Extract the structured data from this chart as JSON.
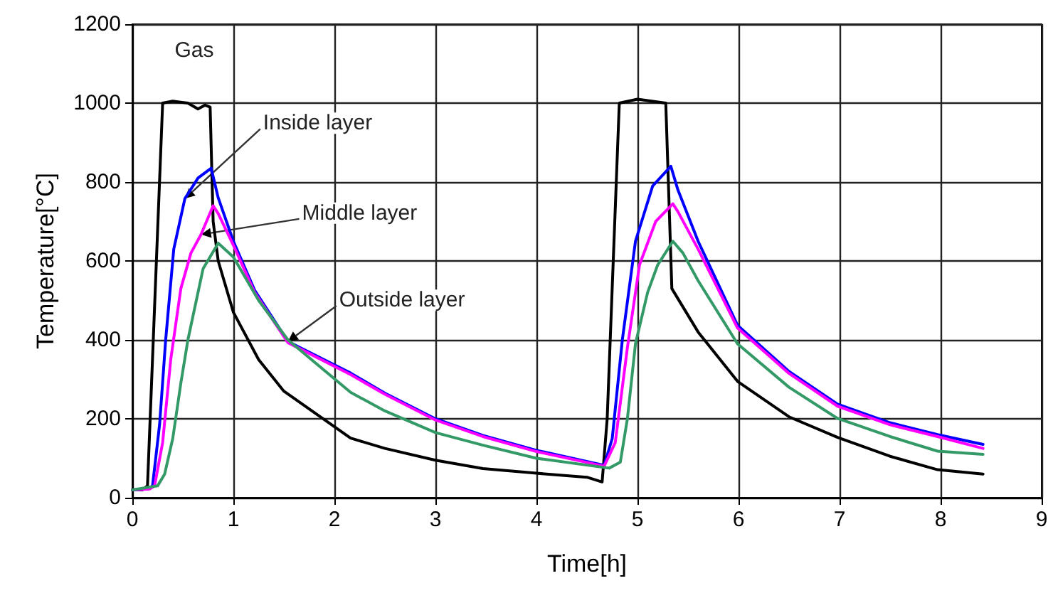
{
  "chart_data": {
    "type": "line",
    "xlabel": "Time[h]",
    "ylabel": "Temperature[°C]",
    "xlim": [
      0,
      9
    ],
    "xticks": [
      0,
      1,
      2,
      3,
      4,
      5,
      6,
      7,
      8,
      9
    ],
    "ylim": [
      0,
      1200
    ],
    "yticks": [
      0,
      200,
      400,
      600,
      800,
      1000,
      1200
    ],
    "grid": true,
    "marker": "none",
    "line_style": "solid",
    "series": [
      {
        "color": "#000000",
        "x": [
          0,
          0.1,
          0.15,
          0.3,
          0.4,
          0.55,
          0.65,
          0.72,
          0.77,
          0.8,
          0.85,
          1,
          1.25,
          1.5,
          2.16,
          2.5,
          3,
          3.47,
          4,
          4.5,
          4.65,
          4.7,
          4.82,
          5.0,
          5.28,
          5.34,
          5.6,
          5.99,
          6.5,
          6.98,
          7.5,
          7.97,
          8.42
        ],
        "values": [
          20,
          20,
          30,
          1000,
          1005,
          1000,
          985,
          995,
          990,
          700,
          600,
          470,
          350,
          270,
          151,
          125,
          95,
          74,
          62,
          52,
          40,
          200,
          1000,
          1010,
          1000,
          530,
          420,
          295,
          205,
          153,
          105,
          71,
          60
        ]
      },
      {
        "color": "#0000ff",
        "x": [
          0,
          0.15,
          0.2,
          0.27,
          0.33,
          0.41,
          0.52,
          0.65,
          0.78,
          0.85,
          1,
          1.21,
          1.54,
          2.16,
          2.5,
          3,
          3.47,
          4,
          4.67,
          4.75,
          4.85,
          4.98,
          5.15,
          5.33,
          5.4,
          5.6,
          5.99,
          6.5,
          6.98,
          7.5,
          7.97,
          8.42
        ],
        "values": [
          20,
          22,
          30,
          186,
          400,
          630,
          758,
          810,
          835,
          760,
          650,
          526,
          396,
          316,
          265,
          200,
          158,
          120,
          82,
          150,
          400,
          650,
          790,
          840,
          780,
          650,
          437,
          320,
          237,
          190,
          160,
          135
        ]
      },
      {
        "color": "#ff00ff",
        "x": [
          0,
          0.17,
          0.22,
          0.3,
          0.38,
          0.48,
          0.58,
          0.68,
          0.8,
          0.85,
          1,
          1.21,
          1.54,
          2.16,
          2.5,
          3,
          3.47,
          4,
          4.67,
          4.78,
          4.9,
          5.02,
          5.18,
          5.35,
          5.4,
          5.6,
          5.99,
          6.5,
          6.98,
          7.5,
          7.97,
          8.42
        ],
        "values": [
          20,
          22,
          30,
          140,
          350,
          530,
          620,
          667,
          740,
          720,
          640,
          520,
          393,
          312,
          262,
          197,
          155,
          117,
          80,
          140,
          380,
          590,
          700,
          745,
          725,
          630,
          430,
          315,
          232,
          185,
          155,
          125
        ]
      },
      {
        "color": "#339966",
        "x": [
          0,
          0.25,
          0.32,
          0.4,
          0.48,
          0.55,
          0.7,
          0.85,
          1,
          1.25,
          1.54,
          2.16,
          2.5,
          3,
          3.47,
          4,
          4.72,
          4.83,
          4.9,
          4.98,
          5.1,
          5.2,
          5.35,
          5.45,
          5.6,
          5.99,
          6.5,
          6.98,
          7.5,
          7.97,
          8.42
        ],
        "values": [
          20,
          30,
          60,
          150,
          290,
          400,
          580,
          645,
          610,
          500,
          400,
          267,
          220,
          165,
          133,
          100,
          75,
          90,
          200,
          390,
          520,
          590,
          650,
          620,
          550,
          390,
          280,
          201,
          155,
          118,
          110
        ]
      }
    ],
    "annotations": [
      {
        "text": "Gas",
        "x": 0.5,
        "y": 1003
      },
      {
        "text": "Inside layer",
        "x": 0.52,
        "y": 758
      },
      {
        "text": "Middle layer",
        "x": 0.68,
        "y": 667
      },
      {
        "text": "Outside layer",
        "x": 1.54,
        "y": 396
      }
    ]
  }
}
